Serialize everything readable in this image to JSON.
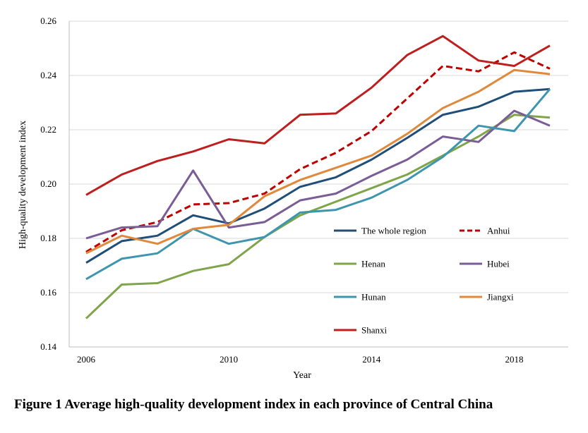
{
  "caption": "Figure 1  Average high-quality development index in each province of Central China",
  "chart_data": {
    "type": "line",
    "title": "",
    "xlabel": "Year",
    "ylabel": "High-quality development index",
    "x": [
      2006,
      2007,
      2008,
      2009,
      2010,
      2011,
      2012,
      2013,
      2014,
      2015,
      2016,
      2017,
      2018,
      2019
    ],
    "xlim": [
      2006,
      2019
    ],
    "ylim": [
      0.14,
      0.26
    ],
    "x_ticks": [
      "2006",
      "2010",
      "2014",
      "2018"
    ],
    "y_ticks": [
      "0.14",
      "0.16",
      "0.18",
      "0.20",
      "0.22",
      "0.24",
      "0.26"
    ],
    "grid": "horizontal",
    "legend": "inside center-right, two columns",
    "series": [
      {
        "name": "The whole region",
        "color": "#1F4E79",
        "dash": "solid",
        "values": [
          0.171,
          0.179,
          0.181,
          0.1885,
          0.1855,
          0.191,
          0.199,
          0.2025,
          0.209,
          0.217,
          0.2255,
          0.2285,
          0.234,
          0.235
        ]
      },
      {
        "name": "Anhui",
        "color": "#C00000",
        "dash": "dashed",
        "values": [
          0.175,
          0.183,
          0.186,
          0.1925,
          0.193,
          0.1965,
          0.2055,
          0.2115,
          0.2195,
          0.2315,
          0.2435,
          0.2415,
          0.2485,
          0.2425
        ]
      },
      {
        "name": "Henan",
        "color": "#7FA54A",
        "dash": "solid",
        "values": [
          0.1505,
          0.163,
          0.1635,
          0.168,
          0.1705,
          0.1805,
          0.1885,
          0.1935,
          0.1985,
          0.2035,
          0.2105,
          0.2175,
          0.2255,
          0.2245
        ]
      },
      {
        "name": "Hubei",
        "color": "#7A5C96",
        "dash": "solid",
        "values": [
          0.18,
          0.184,
          0.1845,
          0.205,
          0.184,
          0.186,
          0.194,
          0.1965,
          0.203,
          0.209,
          0.2175,
          0.2155,
          0.227,
          0.2215
        ]
      },
      {
        "name": "Hunan",
        "color": "#3E96AE",
        "dash": "solid",
        "values": [
          0.165,
          0.1725,
          0.1745,
          0.1835,
          0.178,
          0.1805,
          0.1895,
          0.1905,
          0.195,
          0.2015,
          0.21,
          0.2215,
          0.2195,
          0.235
        ]
      },
      {
        "name": "Jiangxi",
        "color": "#E0893B",
        "dash": "solid",
        "values": [
          0.1745,
          0.181,
          0.178,
          0.1835,
          0.185,
          0.1955,
          0.2015,
          0.206,
          0.2105,
          0.2185,
          0.228,
          0.234,
          0.242,
          0.2405
        ]
      },
      {
        "name": "Shanxi",
        "color": "#BF1E1E",
        "dash": "solid",
        "values": [
          0.196,
          0.2035,
          0.2085,
          0.212,
          0.2165,
          0.215,
          0.2255,
          0.226,
          0.2355,
          0.2475,
          0.2545,
          0.2455,
          0.2435,
          0.251
        ]
      }
    ]
  }
}
